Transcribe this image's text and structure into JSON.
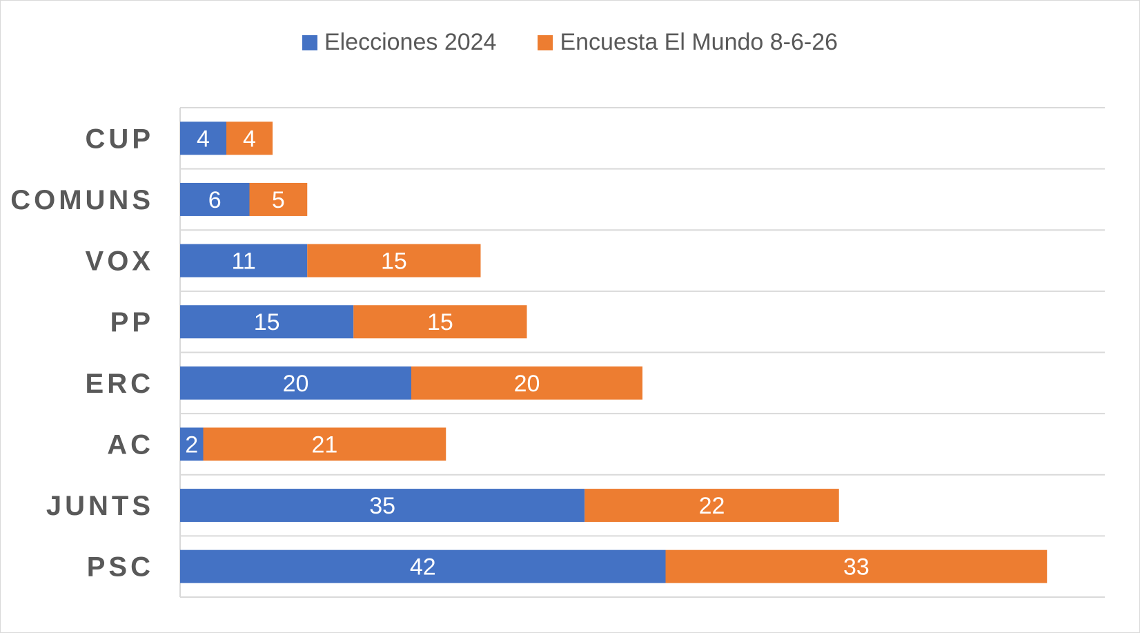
{
  "chart_data": {
    "type": "bar",
    "orientation": "horizontal",
    "stacked": true,
    "categories": [
      "CUP",
      "COMUNS",
      "VOX",
      "PP",
      "ERC",
      "AC",
      "JUNTS",
      "PSC"
    ],
    "series": [
      {
        "name": "Elecciones 2024",
        "color": "#4472C4",
        "values": [
          4,
          6,
          11,
          15,
          20,
          2,
          35,
          42
        ]
      },
      {
        "name": "Encuesta El Mundo 8-6-26",
        "color": "#ED7D31",
        "values": [
          4,
          5,
          15,
          15,
          20,
          21,
          22,
          33
        ]
      }
    ],
    "xlim": [
      0,
      80
    ],
    "grid": true,
    "legend_position": "top"
  }
}
